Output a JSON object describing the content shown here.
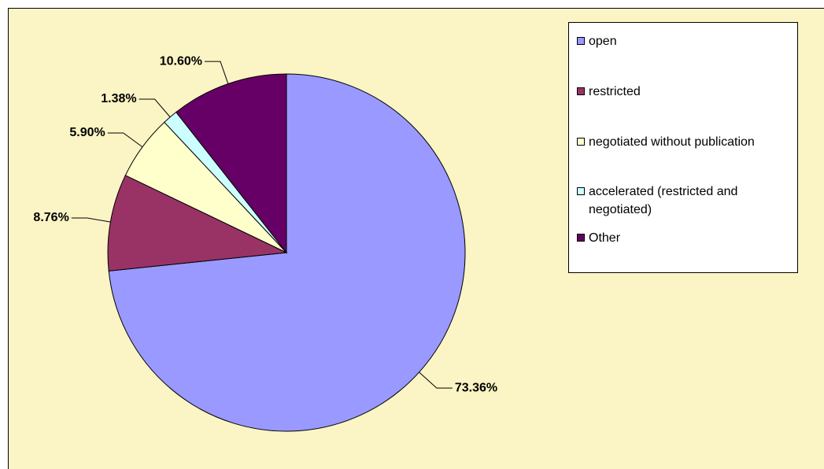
{
  "chart_data": {
    "type": "pie",
    "categories": [
      "open",
      "restricted",
      "negotiated without publication",
      "accelerated (restricted and negotiated)",
      "Other"
    ],
    "values": [
      73.36,
      8.76,
      5.9,
      1.38,
      10.6
    ],
    "value_labels": [
      "73.36%",
      "8.76%",
      "5.90%",
      "1.38%",
      "10.60%"
    ],
    "colors": [
      "#9999ff",
      "#993366",
      "#ffffcc",
      "#ccffff",
      "#660066"
    ],
    "legend": "right"
  }
}
